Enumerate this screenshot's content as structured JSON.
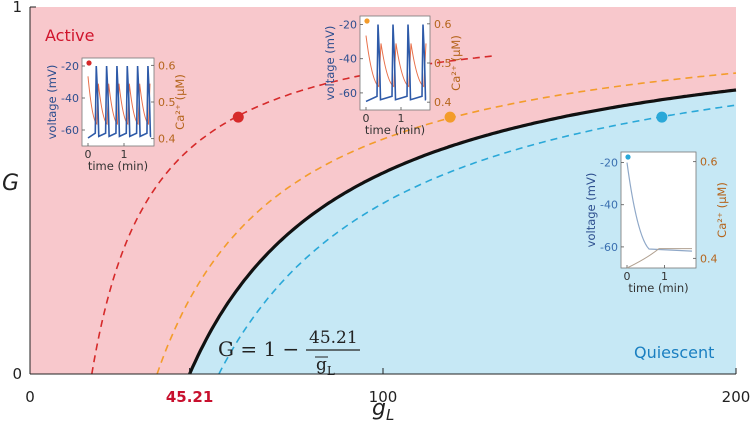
{
  "chart_data": {
    "type": "area",
    "xlabel": "g",
    "xlabel_sub": "L",
    "ylabel": "G",
    "xlim": [
      0,
      200
    ],
    "ylim": [
      0,
      1
    ],
    "x_ticks": [
      {
        "value": 0,
        "label": "0",
        "color": "#222222"
      },
      {
        "value": 45.21,
        "label": "45.21",
        "color": "#c8102e"
      },
      {
        "value": 100,
        "label": "100",
        "color": "#222222"
      },
      {
        "value": 200,
        "label": "200",
        "color": "#222222"
      }
    ],
    "y_ticks": [
      {
        "value": 0,
        "label": "0"
      },
      {
        "value": 1,
        "label": "1"
      }
    ],
    "boundary": {
      "formula": "G = 1 - c / g_L",
      "c": 45.21,
      "color": "#111111"
    },
    "formula_label": {
      "lhs": "G = 1 −",
      "numerator": "45.21",
      "denominator": "g",
      "denominator_sub": "L"
    },
    "regions": [
      {
        "name": "Active",
        "color": "#f8c8cc",
        "label_color": "#d0142c"
      },
      {
        "name": "Quiescent",
        "color": "#c6e8f5",
        "label_color": "#1a7fc1"
      }
    ],
    "dashed_series": [
      {
        "c": 17.5,
        "color": "#d62a2a",
        "marker_x": 59,
        "marker_y": 0.7,
        "x_end": 131
      },
      {
        "c": 36,
        "color": "#f39c2b",
        "marker_x": 119,
        "marker_y": 0.7,
        "x_end": 200
      },
      {
        "c": 53.5,
        "color": "#2aa8d8",
        "marker_x": 179,
        "marker_y": 0.7,
        "x_end": 200
      }
    ],
    "insets": [
      {
        "id": "red",
        "ylabel_left": "voltage (mV)",
        "ylabel_right": "Ca²⁺ (µM)",
        "xlabel": "time (min)",
        "left_ticks": [
          "-20",
          "-40",
          "-60"
        ],
        "right_ticks": [
          "0.6",
          "0.5",
          "0.4"
        ],
        "x_ticks": [
          "0",
          "1"
        ],
        "dot_color": "#d62a2a",
        "voltage_color": "#2e5aa8",
        "ca_color": "#e8704a",
        "spikes": 6
      },
      {
        "id": "orange",
        "ylabel_left": "voltage (mV)",
        "ylabel_right": "Ca²⁺ (µM)",
        "xlabel": "time (min)",
        "left_ticks": [
          "-20",
          "-40",
          "-60"
        ],
        "right_ticks": [
          "0.6",
          "0.5",
          "0.4"
        ],
        "x_ticks": [
          "0",
          "1"
        ],
        "dot_color": "#f39c2b",
        "voltage_color": "#2e5aa8",
        "ca_color": "#e8704a",
        "spikes": 4
      },
      {
        "id": "blue",
        "ylabel_left": "voltage (mV)",
        "ylabel_right": "Ca²⁺ (µM)",
        "xlabel": "time (min)",
        "left_ticks": [
          "-20",
          "-40",
          "-60"
        ],
        "right_ticks": [
          "0.6",
          "0.4"
        ],
        "x_ticks": [
          "0",
          "1"
        ],
        "dot_color": "#2aa8d8",
        "voltage_color": "#8fa8c8",
        "ca_color": "#b0a090",
        "spikes": 0
      }
    ]
  }
}
